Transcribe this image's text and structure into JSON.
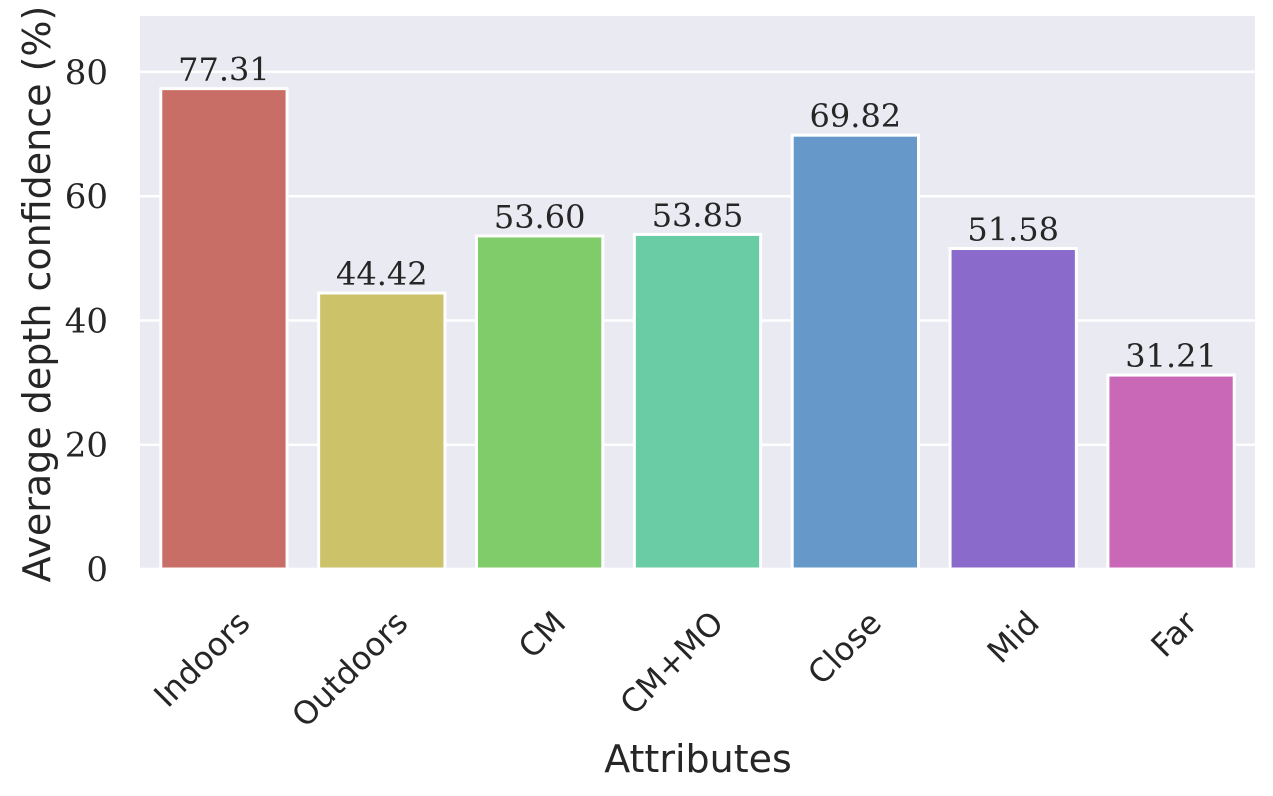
{
  "chart_data": {
    "type": "bar",
    "categories": [
      "Indoors",
      "Outdoors",
      "CM",
      "CM+MO",
      "Close",
      "Mid",
      "Far"
    ],
    "values": [
      77.31,
      44.42,
      53.6,
      53.85,
      69.82,
      51.58,
      31.21
    ],
    "value_labels": [
      "77.31",
      "44.42",
      "53.60",
      "53.85",
      "69.82",
      "51.58",
      "31.21"
    ],
    "colors": [
      "#c96e66",
      "#cbc26a",
      "#80cc6a",
      "#69cca4",
      "#6699ca",
      "#8a6bcb",
      "#c868b7"
    ],
    "xlabel": "Attributes",
    "ylabel": "Average depth confidence (%)",
    "ylim": [
      0,
      89
    ],
    "yticks": [
      0,
      20,
      40,
      60,
      80
    ],
    "ytick_labels": [
      "0",
      "20",
      "40",
      "60",
      "80"
    ],
    "grid": true,
    "background": "#eaeaf2"
  }
}
